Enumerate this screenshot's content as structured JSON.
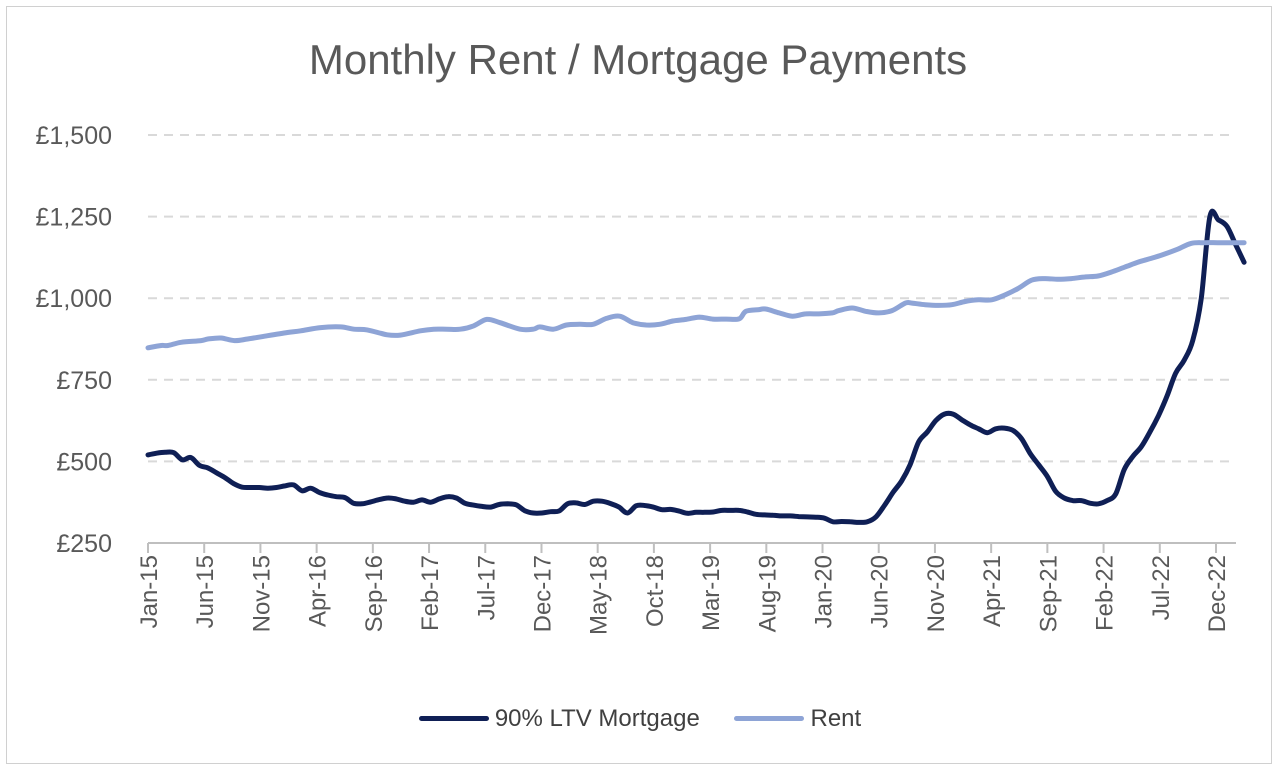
{
  "chart_data": {
    "type": "line",
    "title": "Monthly Rent / Mortgage Payments",
    "xlabel": "",
    "ylabel": "",
    "ylim": [
      250,
      1500
    ],
    "yticks": [
      250,
      500,
      750,
      1000,
      1250,
      1500
    ],
    "ytick_labels": [
      "£250",
      "£500",
      "£750",
      "£1,000",
      "£1,250",
      "£1,500"
    ],
    "grid": true,
    "legend": "bottom",
    "xtick_labels": [
      "Jan-15",
      "Jun-15",
      "Nov-15",
      "Apr-16",
      "Sep-16",
      "Feb-17",
      "Jul-17",
      "Dec-17",
      "May-18",
      "Oct-18",
      "Mar-19",
      "Aug-19",
      "Jan-20",
      "Jun-20",
      "Nov-20",
      "Apr-21",
      "Sep-21",
      "Feb-22",
      "Jul-22",
      "Dec-22"
    ],
    "x_start": "Jan-15",
    "x_end": "Mar-23",
    "series": [
      {
        "name": "90% LTV Mortgage",
        "color": "#0f1f55",
        "points": [
          [
            0,
            520
          ],
          [
            1,
            525
          ],
          [
            2,
            528
          ],
          [
            3,
            527
          ],
          [
            4,
            505
          ],
          [
            5,
            512
          ],
          [
            6,
            488
          ],
          [
            7,
            480
          ],
          [
            8,
            465
          ],
          [
            9,
            450
          ],
          [
            10,
            432
          ],
          [
            11,
            421
          ],
          [
            12,
            420
          ],
          [
            13,
            420
          ],
          [
            14,
            418
          ],
          [
            15,
            420
          ],
          [
            16,
            425
          ],
          [
            17,
            428
          ],
          [
            18,
            410
          ],
          [
            19,
            418
          ],
          [
            20,
            405
          ],
          [
            21,
            397
          ],
          [
            22,
            392
          ],
          [
            23,
            389
          ],
          [
            24,
            372
          ],
          [
            25,
            370
          ],
          [
            26,
            376
          ],
          [
            27,
            383
          ],
          [
            28,
            388
          ],
          [
            29,
            385
          ],
          [
            30,
            378
          ],
          [
            31,
            375
          ],
          [
            32,
            382
          ],
          [
            33,
            375
          ],
          [
            34,
            385
          ],
          [
            35,
            392
          ],
          [
            36,
            388
          ],
          [
            37,
            372
          ],
          [
            38,
            366
          ],
          [
            39,
            362
          ],
          [
            40,
            360
          ],
          [
            41,
            368
          ],
          [
            42,
            370
          ],
          [
            43,
            367
          ],
          [
            44,
            349
          ],
          [
            45,
            342
          ],
          [
            46,
            342
          ],
          [
            47,
            346
          ],
          [
            48,
            348
          ],
          [
            49,
            370
          ],
          [
            50,
            373
          ],
          [
            51,
            368
          ],
          [
            52,
            378
          ],
          [
            53,
            378
          ],
          [
            54,
            371
          ],
          [
            55,
            360
          ],
          [
            56,
            342
          ],
          [
            57,
            364
          ],
          [
            58,
            365
          ],
          [
            59,
            360
          ],
          [
            60,
            352
          ],
          [
            61,
            353
          ],
          [
            62,
            348
          ],
          [
            63,
            341
          ],
          [
            64,
            344
          ],
          [
            65,
            344
          ],
          [
            66,
            345
          ],
          [
            67,
            350
          ],
          [
            68,
            350
          ],
          [
            69,
            350
          ],
          [
            70,
            345
          ],
          [
            71,
            338
          ],
          [
            72,
            336
          ],
          [
            73,
            335
          ],
          [
            74,
            333
          ],
          [
            75,
            333
          ],
          [
            76,
            331
          ],
          [
            77,
            330
          ],
          [
            78,
            329
          ],
          [
            79,
            326
          ],
          [
            80,
            315
          ],
          [
            81,
            316
          ],
          [
            82,
            315
          ],
          [
            83,
            313
          ],
          [
            84,
            315
          ],
          [
            85,
            330
          ],
          [
            86,
            365
          ],
          [
            87,
            405
          ],
          [
            88,
            440
          ],
          [
            89,
            490
          ],
          [
            90,
            560
          ],
          [
            91,
            590
          ],
          [
            92,
            625
          ],
          [
            93,
            645
          ],
          [
            94,
            645
          ],
          [
            95,
            628
          ],
          [
            96,
            612
          ],
          [
            97,
            600
          ],
          [
            98,
            588
          ],
          [
            99,
            600
          ],
          [
            100,
            602
          ],
          [
            101,
            595
          ],
          [
            102,
            570
          ],
          [
            103,
            525
          ],
          [
            104,
            490
          ],
          [
            105,
            455
          ],
          [
            106,
            408
          ],
          [
            107,
            388
          ],
          [
            108,
            380
          ],
          [
            109,
            380
          ],
          [
            110,
            372
          ],
          [
            111,
            370
          ],
          [
            112,
            380
          ],
          [
            113,
            400
          ],
          [
            114,
            475
          ],
          [
            115,
            515
          ],
          [
            116,
            545
          ],
          [
            117,
            590
          ],
          [
            118,
            640
          ],
          [
            119,
            700
          ],
          [
            120,
            770
          ],
          [
            121,
            810
          ],
          [
            122,
            870
          ],
          [
            123,
            1000
          ],
          [
            124,
            1250
          ],
          [
            125,
            1240
          ],
          [
            126,
            1220
          ],
          [
            127,
            1165
          ],
          [
            128,
            1110
          ]
        ]
      },
      {
        "name": "Rent",
        "color": "#8ea4d6",
        "points": [
          [
            0,
            848
          ],
          [
            2,
            855
          ],
          [
            3,
            855
          ],
          [
            5,
            865
          ],
          [
            8,
            870
          ],
          [
            9,
            875
          ],
          [
            11,
            878
          ],
          [
            13,
            870
          ],
          [
            15,
            875
          ],
          [
            18,
            885
          ],
          [
            21,
            895
          ],
          [
            23,
            900
          ],
          [
            26,
            910
          ],
          [
            29,
            912
          ],
          [
            31,
            905
          ],
          [
            33,
            903
          ],
          [
            36,
            888
          ],
          [
            38,
            887
          ],
          [
            41,
            900
          ],
          [
            43,
            905
          ],
          [
            45,
            905
          ],
          [
            47,
            905
          ],
          [
            49,
            915
          ],
          [
            51,
            935
          ],
          [
            53,
            925
          ],
          [
            56,
            905
          ],
          [
            58,
            905
          ],
          [
            59,
            912
          ],
          [
            61,
            905
          ],
          [
            63,
            918
          ],
          [
            65,
            920
          ],
          [
            67,
            920
          ],
          [
            69,
            938
          ],
          [
            71,
            945
          ],
          [
            73,
            925
          ],
          [
            75,
            918
          ],
          [
            77,
            920
          ],
          [
            79,
            930
          ],
          [
            81,
            935
          ],
          [
            83,
            942
          ],
          [
            85,
            936
          ],
          [
            87,
            936
          ],
          [
            89,
            937
          ],
          [
            90,
            960
          ],
          [
            92,
            965
          ],
          [
            93,
            967
          ],
          [
            95,
            955
          ],
          [
            97,
            945
          ],
          [
            99,
            952
          ],
          [
            101,
            952
          ],
          [
            103,
            955
          ],
          [
            104,
            962
          ],
          [
            106,
            970
          ],
          [
            108,
            960
          ],
          [
            110,
            955
          ],
          [
            112,
            962
          ],
          [
            114,
            985
          ],
          [
            115,
            985
          ],
          [
            117,
            980
          ],
          [
            119,
            978
          ],
          [
            121,
            980
          ],
          [
            123,
            990
          ],
          [
            125,
            995
          ],
          [
            127,
            995
          ],
          [
            129,
            1010
          ],
          [
            131,
            1030
          ],
          [
            133,
            1055
          ],
          [
            135,
            1060
          ],
          [
            137,
            1058
          ],
          [
            139,
            1060
          ],
          [
            141,
            1065
          ],
          [
            143,
            1068
          ],
          [
            145,
            1080
          ],
          [
            147,
            1095
          ],
          [
            149,
            1110
          ],
          [
            151,
            1122
          ],
          [
            153,
            1135
          ],
          [
            155,
            1150
          ],
          [
            157,
            1168
          ],
          [
            159,
            1170
          ],
          [
            161,
            1170
          ],
          [
            163,
            1170
          ],
          [
            165,
            1170
          ]
        ]
      }
    ]
  }
}
